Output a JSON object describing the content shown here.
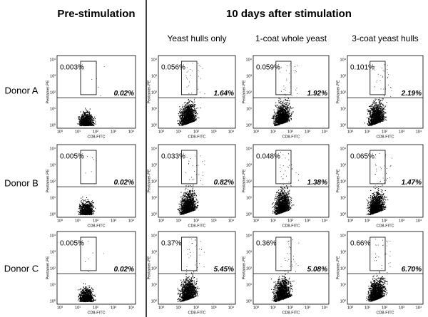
{
  "headers": {
    "pre": "Pre-stimulation",
    "post": "10 days after stimulation"
  },
  "columns": [
    "Yeast hulls only",
    "1-coat whole yeast",
    "3-coat yeast hulls"
  ],
  "axis": {
    "x_label": "CD8-FITC",
    "y_label": "Pentamer-PE",
    "ticks": [
      "10⁰",
      "10¹",
      "10²",
      "10³",
      "10⁴"
    ]
  },
  "rows": [
    {
      "label": "Donor A",
      "panels": [
        {
          "upper": "0.003%",
          "lower": "0.02%"
        },
        {
          "upper": "0.056%",
          "lower": "1.64%"
        },
        {
          "upper": "0.059%",
          "lower": "1.92%"
        },
        {
          "upper": "0.101%",
          "lower": "2.19%"
        }
      ]
    },
    {
      "label": "Donor B",
      "panels": [
        {
          "upper": "0.005%",
          "lower": "0.02%"
        },
        {
          "upper": "0.033%",
          "lower": "0.82%"
        },
        {
          "upper": "0.048%",
          "lower": "1.38%"
        },
        {
          "upper": "0.065%",
          "lower": "1.47%"
        }
      ]
    },
    {
      "label": "Donor C",
      "panels": [
        {
          "upper": "0.005%",
          "lower": "0.02%"
        },
        {
          "upper": "0.37%",
          "lower": "5.45%"
        },
        {
          "upper": "0.36%",
          "lower": "5.08%"
        },
        {
          "upper": "0.66%",
          "lower": "6.70%"
        }
      ]
    }
  ]
}
